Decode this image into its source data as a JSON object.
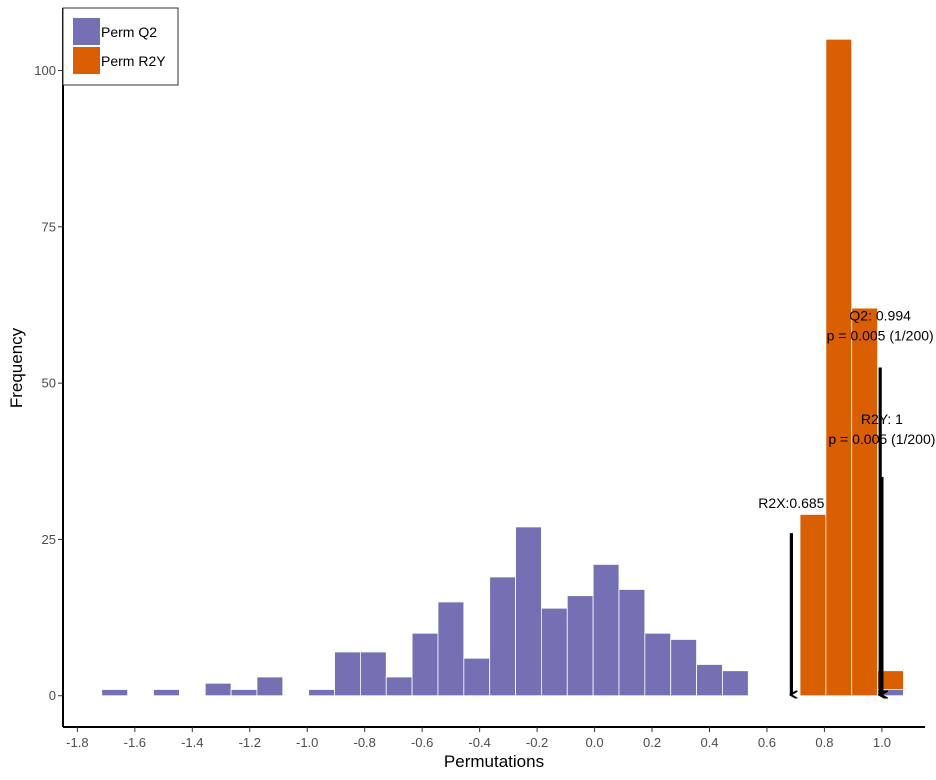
{
  "chart_data": {
    "type": "bar",
    "title": "",
    "xlabel": "Permutations",
    "ylabel": "Frequency",
    "xlim": [
      -1.85,
      1.15
    ],
    "ylim": [
      -5,
      110
    ],
    "bin_width": 0.09,
    "x_ticks": [
      {
        "value": -1.8,
        "label": "-1.8"
      },
      {
        "value": -1.6,
        "label": "-1.6"
      },
      {
        "value": -1.4,
        "label": "-1.4"
      },
      {
        "value": -1.2,
        "label": "-1.2"
      },
      {
        "value": -1.0,
        "label": "-1.0"
      },
      {
        "value": -0.8,
        "label": "-0.8"
      },
      {
        "value": -0.6,
        "label": "-0.6"
      },
      {
        "value": -0.4,
        "label": "-0.4"
      },
      {
        "value": -0.2,
        "label": "-0.2"
      },
      {
        "value": 0.0,
        "label": "0.0"
      },
      {
        "value": 0.2,
        "label": "0.2"
      },
      {
        "value": 0.4,
        "label": "0.4"
      },
      {
        "value": 0.6,
        "label": "0.6"
      },
      {
        "value": 0.8,
        "label": "0.8"
      },
      {
        "value": 1.0,
        "label": "1.0"
      }
    ],
    "y_ticks": [
      {
        "value": 0,
        "label": "0"
      },
      {
        "value": 25,
        "label": "25"
      },
      {
        "value": 50,
        "label": "50"
      },
      {
        "value": 75,
        "label": "75"
      },
      {
        "value": 100,
        "label": "100"
      }
    ],
    "legend": {
      "position": "top-left",
      "entries": [
        {
          "label": "Perm Q2",
          "color": "#7570b3"
        },
        {
          "label": "Perm R2Y",
          "color": "#d95f02"
        }
      ]
    },
    "series": [
      {
        "name": "Perm Q2",
        "color": "#7570b3",
        "bins": [
          {
            "center": -1.67,
            "count": 1
          },
          {
            "center": -1.49,
            "count": 1
          },
          {
            "center": -1.31,
            "count": 2
          },
          {
            "center": -1.22,
            "count": 1
          },
          {
            "center": -1.13,
            "count": 3
          },
          {
            "center": -0.95,
            "count": 1
          },
          {
            "center": -0.86,
            "count": 7
          },
          {
            "center": -0.77,
            "count": 7
          },
          {
            "center": -0.68,
            "count": 3
          },
          {
            "center": -0.59,
            "count": 10
          },
          {
            "center": -0.5,
            "count": 15
          },
          {
            "center": -0.41,
            "count": 6
          },
          {
            "center": -0.32,
            "count": 19
          },
          {
            "center": -0.23,
            "count": 27
          },
          {
            "center": -0.14,
            "count": 14
          },
          {
            "center": -0.05,
            "count": 16
          },
          {
            "center": 0.04,
            "count": 21
          },
          {
            "center": 0.13,
            "count": 17
          },
          {
            "center": 0.22,
            "count": 10
          },
          {
            "center": 0.31,
            "count": 9
          },
          {
            "center": 0.4,
            "count": 5
          },
          {
            "center": 0.49,
            "count": 4
          },
          {
            "center": 1.03,
            "count": 1
          }
        ]
      },
      {
        "name": "Perm R2Y",
        "color": "#d95f02",
        "bins": [
          {
            "center": 0.76,
            "count": 29
          },
          {
            "center": 0.85,
            "count": 105
          },
          {
            "center": 0.94,
            "count": 62
          },
          {
            "center": 1.03,
            "count": 4
          }
        ]
      }
    ],
    "annotations": [
      {
        "label": "R2X:0.685",
        "x": 0.685,
        "text_y": 30,
        "arrow_from": 26,
        "arrow_to": 0
      },
      {
        "label": "R2Y: 1",
        "sublabel": "p = 0.005 (1/200)",
        "x": 1.0,
        "text_y": 43.5,
        "arrow_from": 35,
        "arrow_to": 0
      },
      {
        "label": "Q2: 0.994",
        "sublabel": "p = 0.005 (1/200)",
        "x": 0.994,
        "text_y": 60,
        "arrow_from": 52.5,
        "arrow_to": 0
      }
    ]
  }
}
